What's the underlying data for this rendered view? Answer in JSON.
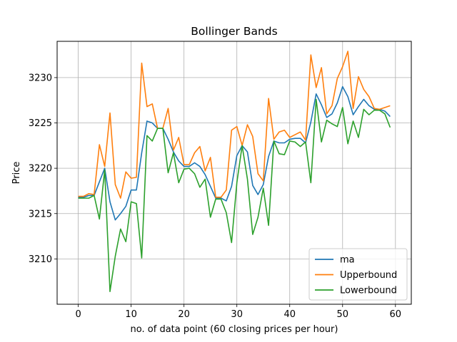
{
  "chart_data": {
    "type": "line",
    "title": "Bollinger Bands",
    "xlabel": "no. of data point (60 closing prices per hour)",
    "ylabel": "Price",
    "xlim": [
      -4,
      63
    ],
    "ylim": [
      3205,
      3234
    ],
    "xticks": [
      0,
      10,
      20,
      30,
      40,
      50,
      60
    ],
    "yticks": [
      3210,
      3215,
      3220,
      3225,
      3230
    ],
    "grid": true,
    "legend_position": "lower-right",
    "x": [
      0,
      1,
      2,
      3,
      4,
      5,
      6,
      7,
      8,
      9,
      10,
      11,
      12,
      13,
      14,
      15,
      16,
      17,
      18,
      19,
      20,
      21,
      22,
      23,
      24,
      25,
      26,
      27,
      28,
      29,
      30,
      31,
      32,
      33,
      34,
      35,
      36,
      37,
      38,
      39,
      40,
      41,
      42,
      43,
      44,
      45,
      46,
      47,
      48,
      49,
      50,
      51,
      52,
      53,
      54,
      55,
      56,
      57,
      58,
      59
    ],
    "series": [
      {
        "name": "ma",
        "color": "#1f77b4",
        "values": [
          3216.8,
          3216.8,
          3217.0,
          3217.0,
          3218.5,
          3220.0,
          3216.3,
          3214.3,
          3215.0,
          3215.8,
          3217.6,
          3217.6,
          3221.7,
          3225.2,
          3225.0,
          3224.4,
          3224.4,
          3223.2,
          3221.8,
          3220.8,
          3220.2,
          3220.2,
          3220.6,
          3220.2,
          3219.3,
          3218.0,
          3216.7,
          3216.7,
          3216.4,
          3218.0,
          3221.4,
          3222.5,
          3221.8,
          3218.1,
          3217.1,
          3218.2,
          3221.3,
          3223.0,
          3222.8,
          3222.8,
          3223.2,
          3223.3,
          3223.3,
          3222.8,
          3225.1,
          3228.2,
          3227.0,
          3225.6,
          3226.0,
          3227.2,
          3229.0,
          3227.9,
          3225.9,
          3226.8,
          3227.6,
          3226.9,
          3226.5,
          3226.5,
          3226.3,
          3225.7
        ]
      },
      {
        "name": "Upperbound",
        "color": "#ff7f0e",
        "values": [
          3216.9,
          3216.9,
          3217.2,
          3217.1,
          3222.6,
          3220.2,
          3226.1,
          3218.2,
          3216.7,
          3219.6,
          3218.9,
          3219.0,
          3231.6,
          3226.8,
          3227.1,
          3224.4,
          3224.4,
          3226.6,
          3222.0,
          3223.4,
          3220.4,
          3220.4,
          3221.7,
          3222.4,
          3219.7,
          3221.2,
          3216.8,
          3216.8,
          3217.6,
          3224.2,
          3224.6,
          3222.5,
          3224.8,
          3223.5,
          3219.4,
          3218.6,
          3227.7,
          3223.2,
          3224.0,
          3224.2,
          3223.4,
          3223.7,
          3224.0,
          3223.1,
          3232.5,
          3228.9,
          3231.1,
          3226.0,
          3226.9,
          3229.9,
          3231.2,
          3232.9,
          3226.6,
          3230.1,
          3228.7,
          3227.9,
          3226.6,
          3226.5,
          3226.7,
          3226.9
        ]
      },
      {
        "name": "Lowerbound",
        "color": "#2ca02c",
        "values": [
          3216.7,
          3216.7,
          3216.7,
          3217.0,
          3214.4,
          3219.8,
          3206.4,
          3210.3,
          3213.3,
          3211.9,
          3216.3,
          3216.1,
          3210.1,
          3223.6,
          3223.0,
          3224.4,
          3224.4,
          3219.5,
          3221.7,
          3218.4,
          3219.9,
          3220.0,
          3219.4,
          3217.9,
          3218.8,
          3214.6,
          3216.6,
          3216.6,
          3215.1,
          3211.8,
          3218.4,
          3222.5,
          3218.8,
          3212.7,
          3214.6,
          3217.8,
          3213.7,
          3223.0,
          3221.6,
          3221.5,
          3223.0,
          3222.9,
          3222.4,
          3222.9,
          3218.4,
          3227.6,
          3222.9,
          3225.3,
          3224.9,
          3224.6,
          3226.7,
          3222.7,
          3225.2,
          3223.4,
          3226.5,
          3225.9,
          3226.4,
          3226.4,
          3226.0,
          3224.5
        ]
      }
    ]
  }
}
